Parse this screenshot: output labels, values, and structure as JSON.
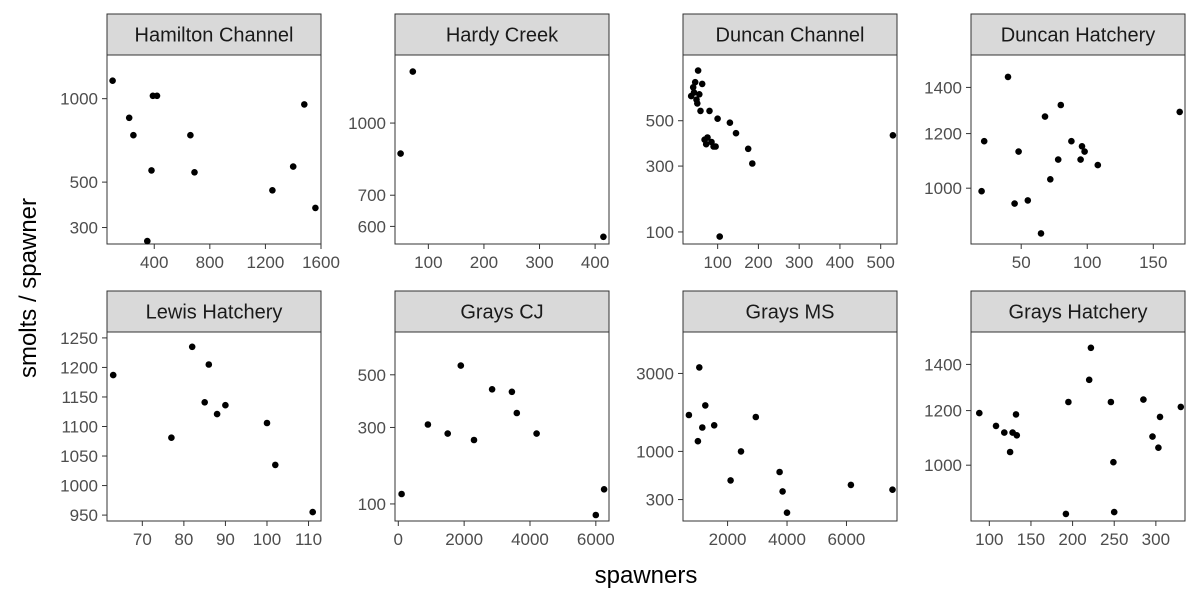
{
  "figure": {
    "xlabel": "spawners",
    "ylabel": "smolts / spawner"
  },
  "chart_data": [
    {
      "type": "scatter",
      "title": "Hamilton Channel",
      "y_scale": "sqrt",
      "xlim": [
        60,
        1600
      ],
      "ylim": [
        240,
        1330
      ],
      "xticks": [
        400,
        800,
        1200,
        1600
      ],
      "yticks": [
        300,
        500,
        1000
      ],
      "points": [
        [
          100,
          1130
        ],
        [
          220,
          870
        ],
        [
          250,
          760
        ],
        [
          350,
          250
        ],
        [
          380,
          560
        ],
        [
          390,
          1020
        ],
        [
          420,
          1020
        ],
        [
          660,
          760
        ],
        [
          690,
          550
        ],
        [
          1250,
          460
        ],
        [
          1400,
          580
        ],
        [
          1480,
          960
        ],
        [
          1560,
          380
        ]
      ]
    },
    {
      "type": "scatter",
      "title": "Hardy Creek",
      "y_scale": "log",
      "xlim": [
        40,
        425
      ],
      "ylim": [
        550,
        1400
      ],
      "xticks": [
        100,
        200,
        300,
        400
      ],
      "yticks": [
        600,
        700,
        1000
      ],
      "points": [
        [
          50,
          860
        ],
        [
          72,
          1290
        ],
        [
          415,
          570
        ]
      ]
    },
    {
      "type": "scatter",
      "title": "Duncan Channel",
      "y_scale": "sqrt",
      "xlim": [
        15,
        540
      ],
      "ylim": [
        75,
        880
      ],
      "xticks": [
        100,
        200,
        300,
        400,
        500
      ],
      "yticks": [
        100,
        300,
        500
      ],
      "points": [
        [
          35,
          630
        ],
        [
          40,
          680
        ],
        [
          42,
          650
        ],
        [
          45,
          710
        ],
        [
          48,
          610
        ],
        [
          50,
          590
        ],
        [
          52,
          780
        ],
        [
          55,
          640
        ],
        [
          58,
          550
        ],
        [
          62,
          700
        ],
        [
          68,
          410
        ],
        [
          72,
          390
        ],
        [
          75,
          420
        ],
        [
          80,
          550
        ],
        [
          85,
          400
        ],
        [
          90,
          380
        ],
        [
          95,
          380
        ],
        [
          100,
          510
        ],
        [
          105,
          90
        ],
        [
          130,
          490
        ],
        [
          145,
          440
        ],
        [
          175,
          370
        ],
        [
          185,
          310
        ],
        [
          530,
          430
        ]
      ]
    },
    {
      "type": "scatter",
      "title": "Duncan Hatchery",
      "y_scale": "log",
      "xlim": [
        12,
        174
      ],
      "ylim": [
        830,
        1560
      ],
      "xticks": [
        50,
        100,
        150
      ],
      "yticks": [
        1000,
        1200,
        1400
      ],
      "points": [
        [
          20,
          990
        ],
        [
          22,
          1170
        ],
        [
          40,
          1450
        ],
        [
          45,
          950
        ],
        [
          48,
          1130
        ],
        [
          55,
          960
        ],
        [
          65,
          860
        ],
        [
          68,
          1270
        ],
        [
          72,
          1030
        ],
        [
          78,
          1100
        ],
        [
          80,
          1320
        ],
        [
          88,
          1170
        ],
        [
          95,
          1100
        ],
        [
          96,
          1150
        ],
        [
          98,
          1130
        ],
        [
          108,
          1080
        ],
        [
          170,
          1290
        ]
      ]
    },
    {
      "type": "scatter",
      "title": "Lewis Hatchery",
      "y_scale": "linear",
      "xlim": [
        61.5,
        113
      ],
      "ylim": [
        940,
        1260
      ],
      "xticks": [
        70,
        80,
        90,
        100,
        110
      ],
      "yticks": [
        950,
        1000,
        1050,
        1100,
        1150,
        1200,
        1250
      ],
      "points": [
        [
          63,
          1187
        ],
        [
          77,
          1081
        ],
        [
          82,
          1235
        ],
        [
          85,
          1141
        ],
        [
          86,
          1205
        ],
        [
          88,
          1121
        ],
        [
          90,
          1136
        ],
        [
          100,
          1106
        ],
        [
          102,
          1035
        ],
        [
          111,
          955
        ]
      ]
    },
    {
      "type": "scatter",
      "title": "Grays CJ",
      "y_scale": "sqrt",
      "xlim": [
        -100,
        6400
      ],
      "ylim": [
        70,
        700
      ],
      "xticks": [
        0,
        2000,
        4000,
        6000
      ],
      "yticks": [
        100,
        300,
        500
      ],
      "points": [
        [
          100,
          120
        ],
        [
          900,
          310
        ],
        [
          1500,
          280
        ],
        [
          1900,
          540
        ],
        [
          2300,
          260
        ],
        [
          2850,
          440
        ],
        [
          3450,
          430
        ],
        [
          3600,
          350
        ],
        [
          4200,
          280
        ],
        [
          6000,
          80
        ],
        [
          6250,
          130
        ]
      ]
    },
    {
      "type": "scatter",
      "title": "Grays MS",
      "y_scale": "sqrt",
      "xlim": [
        500,
        7700
      ],
      "ylim": [
        120,
        4500
      ],
      "xticks": [
        2000,
        4000,
        6000
      ],
      "yticks": [
        300,
        1000,
        3000
      ],
      "points": [
        [
          700,
          1800
        ],
        [
          1000,
          1200
        ],
        [
          1050,
          3200
        ],
        [
          1150,
          1500
        ],
        [
          1250,
          2050
        ],
        [
          1550,
          1550
        ],
        [
          2100,
          530
        ],
        [
          2450,
          1000
        ],
        [
          2950,
          1750
        ],
        [
          3750,
          650
        ],
        [
          3850,
          390
        ],
        [
          4000,
          180
        ],
        [
          6150,
          470
        ],
        [
          7550,
          410
        ]
      ]
    },
    {
      "type": "scatter",
      "title": "Grays Hatchery",
      "y_scale": "log",
      "xlim": [
        78,
        335
      ],
      "ylim": [
        830,
        1560
      ],
      "xticks": [
        100,
        150,
        200,
        250,
        300
      ],
      "yticks": [
        1000,
        1200,
        1400
      ],
      "points": [
        [
          88,
          1190
        ],
        [
          108,
          1140
        ],
        [
          118,
          1115
        ],
        [
          125,
          1045
        ],
        [
          128,
          1115
        ],
        [
          132,
          1185
        ],
        [
          133,
          1105
        ],
        [
          192,
          850
        ],
        [
          195,
          1235
        ],
        [
          220,
          1330
        ],
        [
          222,
          1480
        ],
        [
          246,
          1235
        ],
        [
          249,
          1010
        ],
        [
          250,
          855
        ],
        [
          285,
          1245
        ],
        [
          296,
          1100
        ],
        [
          303,
          1060
        ],
        [
          305,
          1175
        ],
        [
          330,
          1215
        ]
      ]
    }
  ]
}
